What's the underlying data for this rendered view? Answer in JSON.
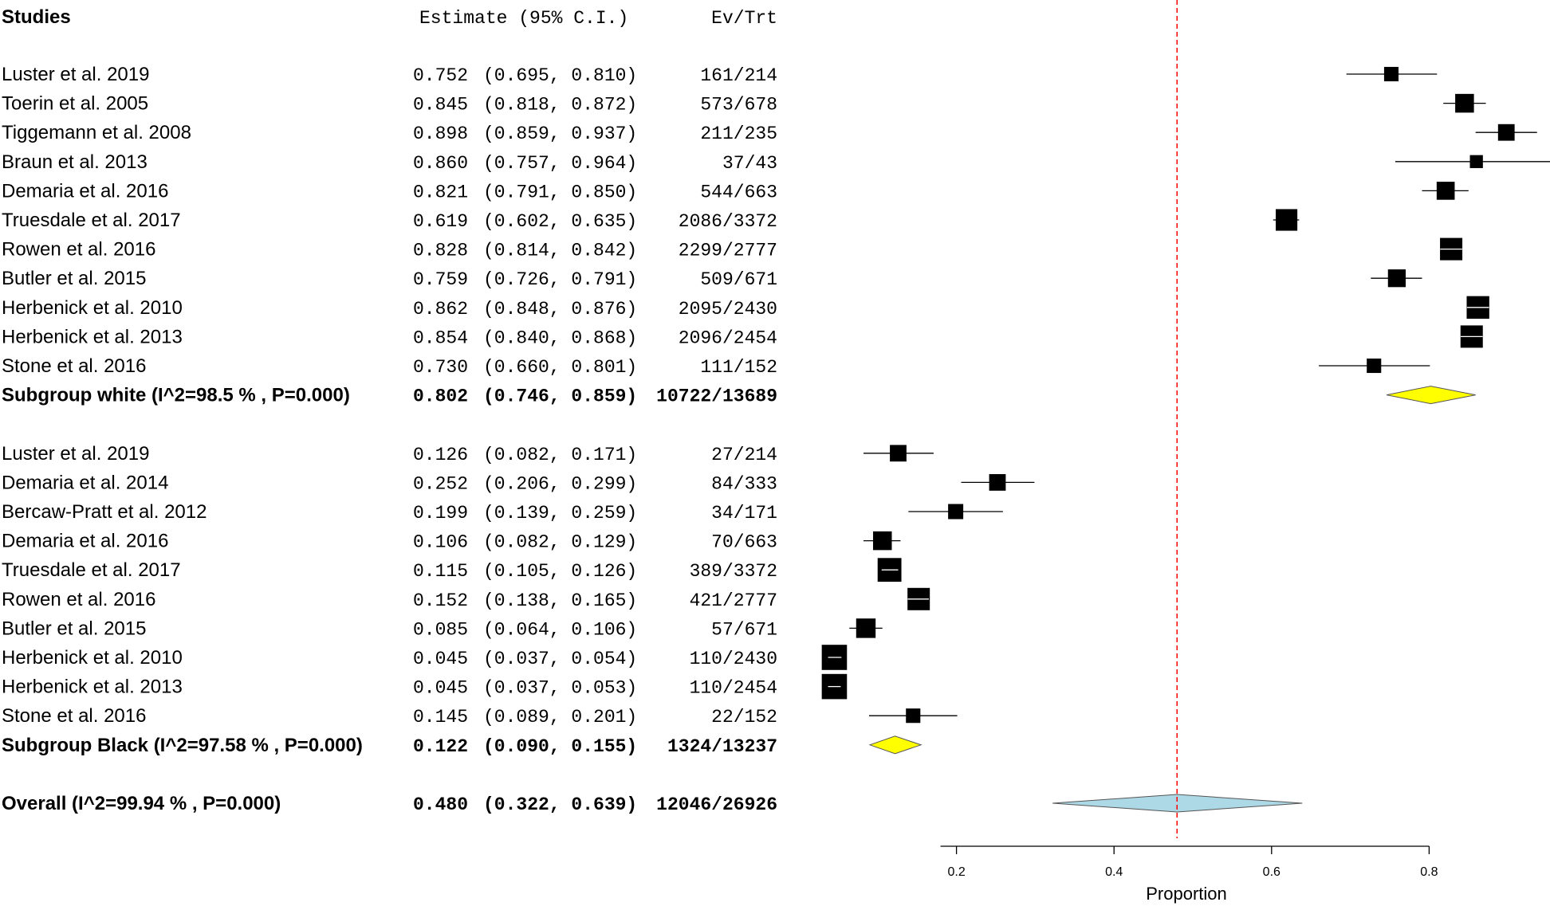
{
  "chart_data": {
    "type": "forest",
    "headers": {
      "studies": "Studies",
      "estimate": "Estimate (95% C.I.)",
      "ev_trt": "Ev/Trt"
    },
    "rows": [
      {
        "kind": "study",
        "label": "Luster et al. 2019",
        "est": 0.752,
        "lo": 0.695,
        "hi": 0.81,
        "est_text": "0.752",
        "ci_text": "(0.695, 0.810)",
        "evtrt": "161/214",
        "weight": 0.45
      },
      {
        "kind": "study",
        "label": "Toerin et al. 2005",
        "est": 0.845,
        "lo": 0.818,
        "hi": 0.872,
        "est_text": "0.845",
        "ci_text": "(0.818, 0.872)",
        "evtrt": "573/678",
        "weight": 0.75
      },
      {
        "kind": "study",
        "label": "Tiggemann et al. 2008",
        "est": 0.898,
        "lo": 0.859,
        "hi": 0.937,
        "est_text": "0.898",
        "ci_text": "(0.859, 0.937)",
        "evtrt": "211/235",
        "weight": 0.6
      },
      {
        "kind": "study",
        "label": "Braun et al. 2013",
        "est": 0.86,
        "lo": 0.757,
        "hi": 0.964,
        "est_text": "0.860",
        "ci_text": "(0.757, 0.964)",
        "evtrt": "37/43",
        "weight": 0.35
      },
      {
        "kind": "study",
        "label": "Demaria et al. 2016",
        "est": 0.821,
        "lo": 0.791,
        "hi": 0.85,
        "est_text": "0.821",
        "ci_text": "(0.791, 0.850)",
        "evtrt": "544/663",
        "weight": 0.7
      },
      {
        "kind": "study",
        "label": "Truesdale et al. 2017",
        "est": 0.619,
        "lo": 0.602,
        "hi": 0.635,
        "est_text": "0.619",
        "ci_text": "(0.602, 0.635)",
        "evtrt": "2086/3372",
        "weight": 0.95
      },
      {
        "kind": "study",
        "label": "Rowen et al. 2016",
        "est": 0.828,
        "lo": 0.814,
        "hi": 0.842,
        "est_text": "0.828",
        "ci_text": "(0.814, 0.842)",
        "evtrt": "2299/2777",
        "weight": 1.0
      },
      {
        "kind": "study",
        "label": "Butler et al. 2015",
        "est": 0.759,
        "lo": 0.726,
        "hi": 0.791,
        "est_text": "0.759",
        "ci_text": "(0.726, 0.791)",
        "evtrt": "509/671",
        "weight": 0.68
      },
      {
        "kind": "study",
        "label": "Herbenick et al. 2010",
        "est": 0.862,
        "lo": 0.848,
        "hi": 0.876,
        "est_text": "0.862",
        "ci_text": "(0.848, 0.876)",
        "evtrt": "2095/2430",
        "weight": 1.02
      },
      {
        "kind": "study",
        "label": "Herbenick et al. 2013",
        "est": 0.854,
        "lo": 0.84,
        "hi": 0.868,
        "est_text": "0.854",
        "ci_text": "(0.840, 0.868)",
        "evtrt": "2096/2454",
        "weight": 1.0
      },
      {
        "kind": "study",
        "label": "Stone et al. 2016",
        "est": 0.73,
        "lo": 0.66,
        "hi": 0.801,
        "est_text": "0.730",
        "ci_text": "(0.660, 0.801)",
        "evtrt": "111/152",
        "weight": 0.45
      },
      {
        "kind": "subgroup",
        "label": "Subgroup white  (I^2=98.5 % , P=0.000)",
        "est": 0.802,
        "lo": 0.746,
        "hi": 0.859,
        "est_text": "0.802",
        "ci_text": "(0.746, 0.859)",
        "evtrt": "10722/13689"
      },
      {
        "kind": "blank"
      },
      {
        "kind": "study",
        "label": "Luster et al. 2019",
        "est": 0.126,
        "lo": 0.082,
        "hi": 0.171,
        "est_text": "0.126",
        "ci_text": "(0.082, 0.171)",
        "evtrt": "27/214",
        "weight": 0.6
      },
      {
        "kind": "study",
        "label": "Demaria et al. 2014",
        "est": 0.252,
        "lo": 0.206,
        "hi": 0.299,
        "est_text": "0.252",
        "ci_text": "(0.206, 0.299)",
        "evtrt": "84/333",
        "weight": 0.6
      },
      {
        "kind": "study",
        "label": "Bercaw-Pratt et al. 2012",
        "est": 0.199,
        "lo": 0.139,
        "hi": 0.259,
        "est_text": "0.199",
        "ci_text": "(0.139, 0.259)",
        "evtrt": "34/171",
        "weight": 0.5
      },
      {
        "kind": "study",
        "label": "Demaria et al. 2016",
        "est": 0.106,
        "lo": 0.082,
        "hi": 0.129,
        "est_text": "0.106",
        "ci_text": "(0.082, 0.129)",
        "evtrt": "70/663",
        "weight": 0.75
      },
      {
        "kind": "study",
        "label": "Truesdale et al. 2017",
        "est": 0.115,
        "lo": 0.105,
        "hi": 0.126,
        "est_text": "0.115",
        "ci_text": "(0.105, 0.126)",
        "evtrt": "389/3372",
        "weight": 1.1
      },
      {
        "kind": "study",
        "label": "Rowen et al. 2016",
        "est": 0.152,
        "lo": 0.138,
        "hi": 0.165,
        "est_text": "0.152",
        "ci_text": "(0.138, 0.165)",
        "evtrt": "421/2777",
        "weight": 1.0
      },
      {
        "kind": "study",
        "label": "Butler et al. 2015",
        "est": 0.085,
        "lo": 0.064,
        "hi": 0.106,
        "est_text": "0.085",
        "ci_text": "(0.064, 0.106)",
        "evtrt": "57/671",
        "weight": 0.8
      },
      {
        "kind": "study",
        "label": "Herbenick et al. 2010",
        "est": 0.045,
        "lo": 0.037,
        "hi": 0.054,
        "est_text": "0.045",
        "ci_text": "(0.037, 0.054)",
        "evtrt": "110/2430",
        "weight": 1.2
      },
      {
        "kind": "study",
        "label": "Herbenick et al. 2013",
        "est": 0.045,
        "lo": 0.037,
        "hi": 0.053,
        "est_text": "0.045",
        "ci_text": "(0.037, 0.053)",
        "evtrt": "110/2454",
        "weight": 1.2
      },
      {
        "kind": "study",
        "label": "Stone et al. 2016",
        "est": 0.145,
        "lo": 0.089,
        "hi": 0.201,
        "est_text": "0.145",
        "ci_text": "(0.089, 0.201)",
        "evtrt": "22/152",
        "weight": 0.45
      },
      {
        "kind": "subgroup",
        "label": "Subgroup Black  (I^2=97.58 % , P=0.000)",
        "est": 0.122,
        "lo": 0.09,
        "hi": 0.155,
        "est_text": "0.122",
        "ci_text": "(0.090, 0.155)",
        "evtrt": "1324/13237"
      },
      {
        "kind": "blank"
      },
      {
        "kind": "overall",
        "label": "Overall (I^2=99.94 % , P=0.000)",
        "est": 0.48,
        "lo": 0.322,
        "hi": 0.639,
        "est_text": "0.480",
        "ci_text": "(0.322, 0.639)",
        "evtrt": "12046/26926"
      }
    ],
    "x_axis": {
      "label": "Proportion",
      "ticks": [
        0.2,
        0.4,
        0.6,
        0.8
      ],
      "tick_labels": [
        "0.2",
        "0.4",
        "0.6",
        "0.8"
      ],
      "range": [
        0.0,
        1.0
      ]
    },
    "reference_line": 0.48,
    "colors": {
      "subgroup_diamond": "#ffff00",
      "overall_diamond": "#add8e6",
      "reference_line": "#ff0000",
      "marker": "#000000"
    }
  }
}
